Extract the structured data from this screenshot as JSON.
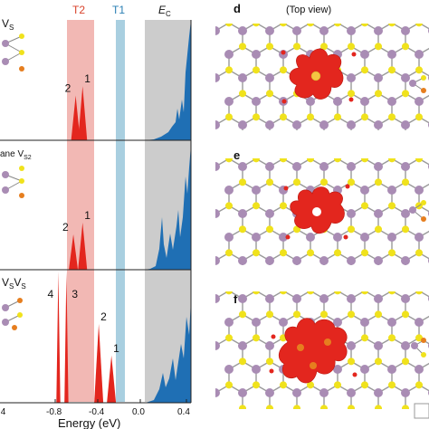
{
  "figure": {
    "left": {
      "bands": {
        "T2": "T2",
        "T1": "T1",
        "Ec": "E",
        "Ec_sub": "C"
      },
      "band_colors": {
        "T2": "#f2b8b4",
        "T1": "#a9cfe0",
        "Ec": "#cccccc",
        "peaks": "#e3261e",
        "cb": "#1f6fb4"
      },
      "panels": [
        {
          "label": "V",
          "label_sub": "S",
          "peaks": [
            {
              "id": "2",
              "x": -0.56,
              "h": 0.38
            },
            {
              "id": "1",
              "x": -0.5,
              "h": 0.46
            }
          ]
        },
        {
          "label": "ane V",
          "label_sub": "S2",
          "peaks": [
            {
              "id": "2",
              "x": -0.58,
              "h": 0.3
            },
            {
              "id": "1",
              "x": -0.5,
              "h": 0.4
            }
          ]
        },
        {
          "label": "V",
          "label_sub": "S",
          "label2": "V",
          "label2_sub": "S",
          "peaks": [
            {
              "id": "4",
              "x": -0.71,
              "h": 1.0
            },
            {
              "id": "3",
              "x": -0.64,
              "h": 1.0
            },
            {
              "id": "2",
              "x": -0.36,
              "h": 0.6
            },
            {
              "id": "1",
              "x": -0.25,
              "h": 0.36
            }
          ]
        }
      ],
      "x_axis": {
        "label": "Energy (eV)",
        "range": [
          -1.0,
          0.4
        ],
        "ticks": [
          "-0.8",
          "-0.4",
          "0.0",
          "0.4"
        ],
        "partial_tick": ".4"
      }
    },
    "right": {
      "letters": [
        "d",
        "e",
        "f"
      ],
      "title": "(Top view)",
      "atom_colors": {
        "mo": "#a98cb4",
        "s": "#f0e21c",
        "o": "#e67e1f",
        "iso": "#e3261e"
      }
    }
  }
}
